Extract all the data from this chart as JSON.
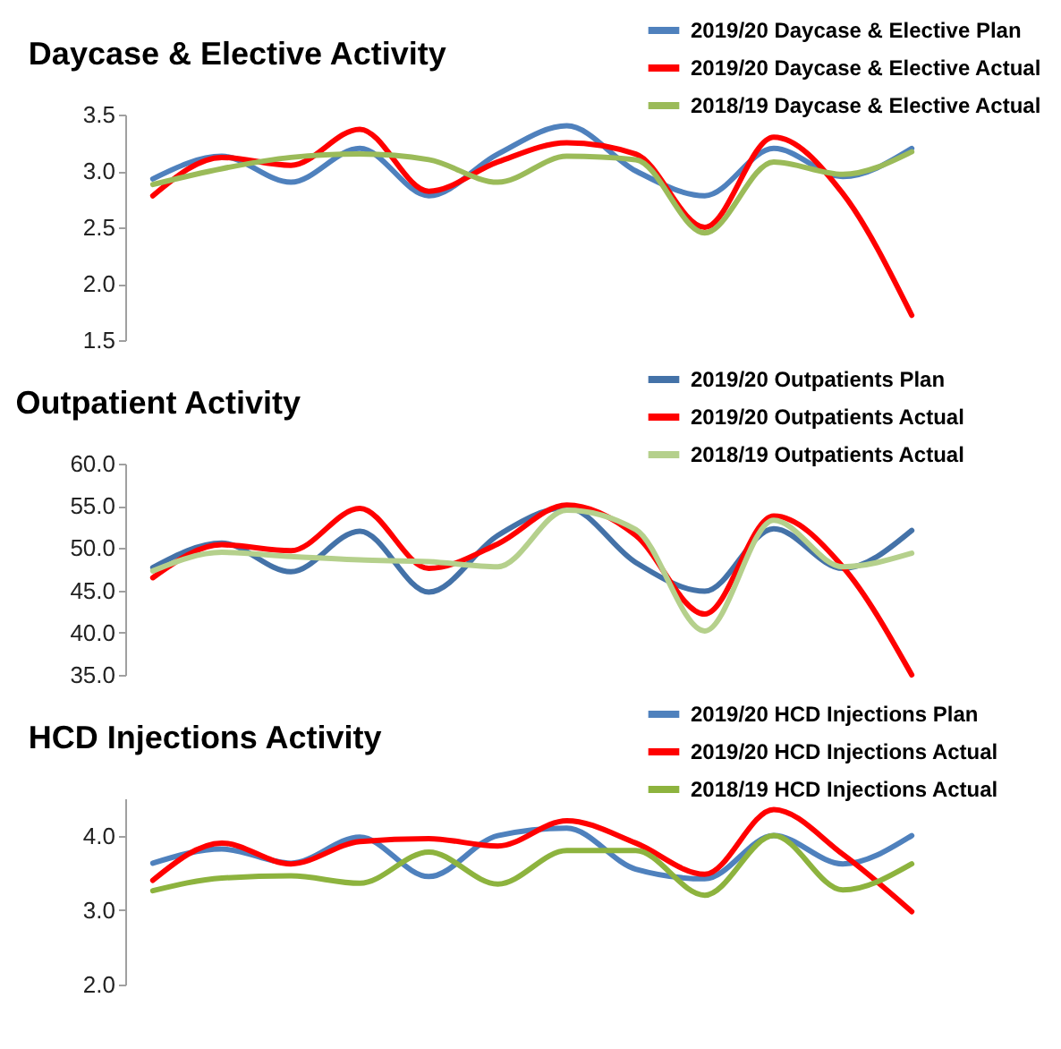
{
  "chart_data": [
    {
      "type": "line",
      "title": "Daycase & Elective Activity",
      "categories": [
        null,
        null,
        null,
        null,
        null,
        null,
        null,
        null,
        null,
        null,
        null,
        null
      ],
      "series": [
        {
          "name": "2019/20 Daycase & Elective Plan",
          "color": "#4f81bd",
          "values": [
            2.93,
            3.13,
            2.9,
            3.2,
            2.78,
            3.15,
            3.4,
            3.0,
            2.78,
            3.2,
            2.95,
            3.2
          ]
        },
        {
          "name": "2019/20 Daycase & Elective Actual",
          "color": "#ff0000",
          "values": [
            2.78,
            3.12,
            3.05,
            3.37,
            2.82,
            3.08,
            3.25,
            3.15,
            2.5,
            3.3,
            2.8,
            1.72
          ]
        },
        {
          "name": "2018/19 Daycase & Elective Actual",
          "color": "#9bbb59",
          "values": [
            2.88,
            3.02,
            3.12,
            3.15,
            3.1,
            2.9,
            3.13,
            3.1,
            2.45,
            3.08,
            2.97,
            3.17
          ]
        }
      ],
      "ylim": [
        1.5,
        3.5
      ],
      "yticks": [
        1.5,
        {
          "value": 2,
          "label": "2.0"
        },
        2.5,
        {
          "value": 3,
          "label": "3.0"
        },
        3.5
      ],
      "grid": false,
      "legend": "top right",
      "tick_labels": "y"
    },
    {
      "type": "line",
      "title": "Outpatient Activity",
      "categories": [
        null,
        null,
        null,
        null,
        null,
        null,
        null,
        null,
        null,
        null,
        null,
        null
      ],
      "series": [
        {
          "name": "2019/20 Outpatients Plan",
          "color": "#4472a8",
          "values": [
            47.7,
            50.6,
            47.2,
            52.0,
            44.8,
            51.5,
            54.8,
            48.3,
            44.9,
            52.3,
            47.6,
            52.1
          ]
        },
        {
          "name": "2019/20 Outpatients Actual",
          "color": "#ff0000",
          "values": [
            46.5,
            50.4,
            49.7,
            54.7,
            47.6,
            50.5,
            55.1,
            51.5,
            42.2,
            53.8,
            47.8,
            35.0
          ]
        },
        {
          "name": "2018/19 Outpatients Actual",
          "color": "#b5d08c",
          "values": [
            47.3,
            49.5,
            49.0,
            48.6,
            48.4,
            47.8,
            54.5,
            52.2,
            40.2,
            53.3,
            47.8,
            49.4
          ]
        }
      ],
      "ylim": [
        35,
        60
      ],
      "yticks": [
        {
          "value": 35,
          "label": "35.0"
        },
        {
          "value": 40,
          "label": "40.0"
        },
        {
          "value": 45,
          "label": "45.0"
        },
        {
          "value": 50,
          "label": "50.0"
        },
        {
          "value": 55,
          "label": "55.0"
        },
        {
          "value": 60,
          "label": "60.0"
        }
      ],
      "grid": false,
      "legend": "top right",
      "tick_labels": "y"
    },
    {
      "type": "line",
      "title": "HCD Injections Activity",
      "categories": [
        null,
        null,
        null,
        null,
        null,
        null,
        null,
        null,
        null,
        null,
        null,
        null
      ],
      "series": [
        {
          "name": "2019/20 HCD Injections Plan",
          "color": "#4f81bd",
          "values": [
            3.63,
            3.82,
            3.63,
            3.98,
            3.45,
            4.0,
            4.1,
            3.55,
            3.42,
            4.0,
            3.62,
            4.0
          ]
        },
        {
          "name": "2019/20 HCD Injections Actual",
          "color": "#ff0000",
          "values": [
            3.4,
            3.9,
            3.62,
            3.92,
            3.96,
            3.86,
            4.2,
            3.9,
            3.48,
            4.35,
            3.75,
            2.98
          ]
        },
        {
          "name": "2018/19 HCD Injections Actual",
          "color": "#8db33e",
          "values": [
            3.26,
            3.43,
            3.46,
            3.36,
            3.78,
            3.35,
            3.8,
            3.8,
            3.2,
            4.0,
            3.27,
            3.62
          ]
        }
      ],
      "ylim": [
        2,
        4.5
      ],
      "yticks": [
        {
          "value": 2,
          "label": "2.0"
        },
        {
          "value": 3,
          "label": "3.0"
        },
        {
          "value": 4,
          "label": "4.0"
        }
      ],
      "grid": false,
      "legend": "top right",
      "tick_labels": "y"
    }
  ]
}
